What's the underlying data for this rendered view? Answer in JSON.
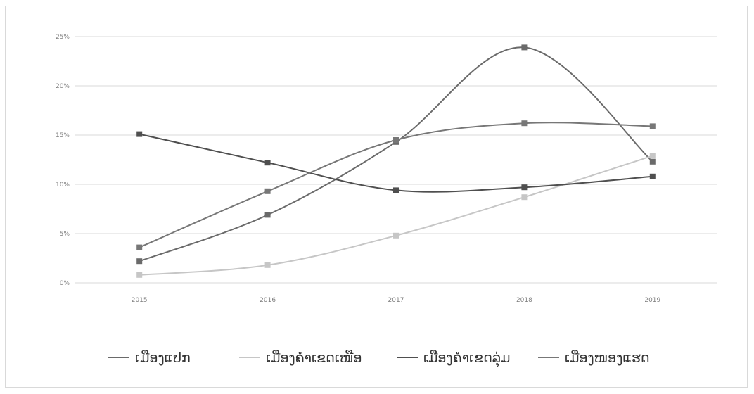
{
  "chart_data": {
    "type": "line",
    "title": "",
    "xlabel": "",
    "ylabel": "",
    "categories": [
      "2015",
      "2016",
      "2017",
      "2018",
      "2019"
    ],
    "y_ticks": [
      "0%",
      "5%",
      "10%",
      "15%",
      "20%",
      "25%"
    ],
    "ylim": [
      0,
      25
    ],
    "grid": true,
    "legend_position": "bottom",
    "series": [
      {
        "name": "ເມືອງແປກ",
        "color": "#6a6a6a",
        "values": [
          2.2,
          6.9,
          14.3,
          23.9,
          12.3
        ]
      },
      {
        "name": "ເມືອງຄຳເຂດເໜືອ",
        "color": "#c6c6c6",
        "values": [
          0.8,
          1.8,
          4.8,
          8.7,
          12.9
        ]
      },
      {
        "name": "ເມືອງຄຳເຂດລຸ່ມ",
        "color": "#4f4f4f",
        "values": [
          15.1,
          12.2,
          9.4,
          9.7,
          10.8
        ]
      },
      {
        "name": "ເມືອງໜອງແຮດ",
        "color": "#777777",
        "values": [
          3.6,
          9.3,
          14.5,
          16.2,
          15.9
        ]
      }
    ]
  }
}
